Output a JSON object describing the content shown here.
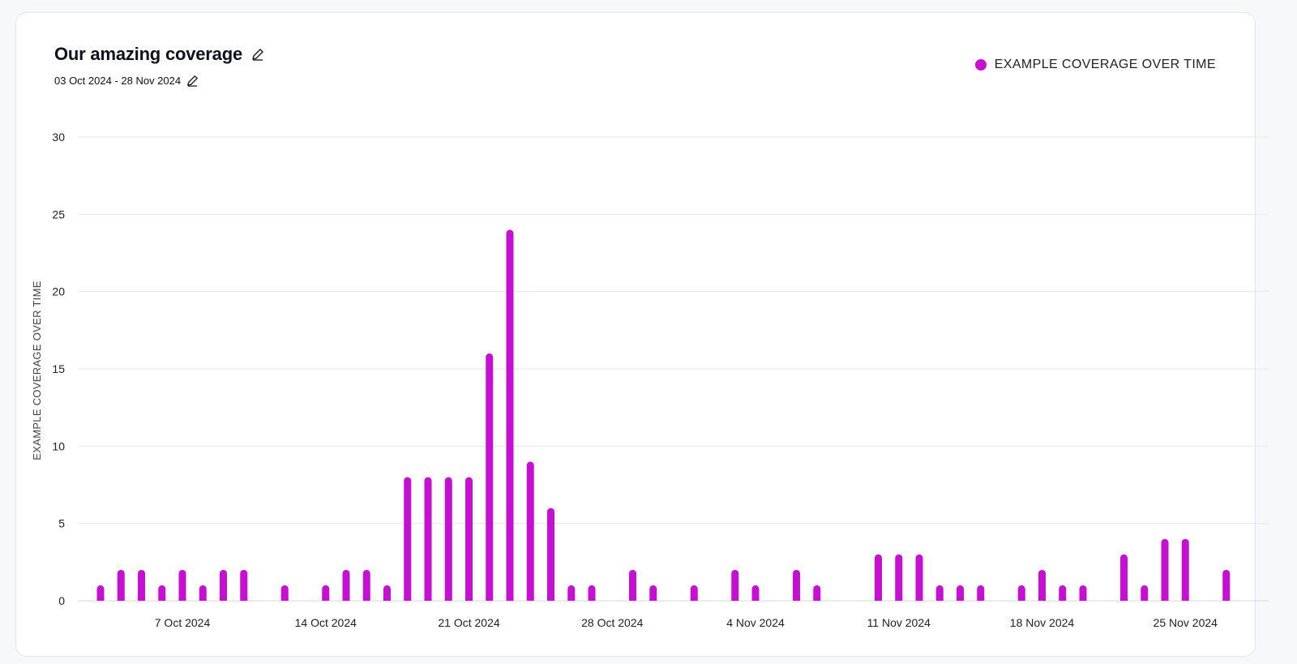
{
  "header": {
    "title": "Our amazing coverage",
    "subtitle": "03 Oct 2024 - 28 Nov 2024",
    "title_edit_icon": "pencil-icon",
    "subtitle_edit_icon": "pencil-icon"
  },
  "legend": {
    "label": "EXAMPLE COVERAGE OVER TIME",
    "color": "#c60fd3",
    "placement": "top-right"
  },
  "chart_data": {
    "type": "bar",
    "ylabel": "EXAMPLE COVERAGE OVER TIME",
    "xlabel": "",
    "ylim": [
      0,
      30
    ],
    "y_ticks": [
      "0",
      "5",
      "10",
      "15",
      "20",
      "25",
      "30"
    ],
    "x_tick_labels": [
      "7 Oct 2024",
      "14 Oct 2024",
      "21 Oct 2024",
      "28 Oct 2024",
      "4 Nov 2024",
      "11 Nov 2024",
      "18 Nov 2024",
      "25 Nov 2024"
    ],
    "grid": true,
    "color": "#c60fd3",
    "series": [
      {
        "name": "EXAMPLE COVERAGE OVER TIME",
        "x": [
          "2024-10-03",
          "2024-10-04",
          "2024-10-05",
          "2024-10-06",
          "2024-10-07",
          "2024-10-08",
          "2024-10-09",
          "2024-10-10",
          "2024-10-11",
          "2024-10-12",
          "2024-10-13",
          "2024-10-14",
          "2024-10-15",
          "2024-10-16",
          "2024-10-17",
          "2024-10-18",
          "2024-10-19",
          "2024-10-20",
          "2024-10-21",
          "2024-10-22",
          "2024-10-23",
          "2024-10-24",
          "2024-10-25",
          "2024-10-26",
          "2024-10-27",
          "2024-10-28",
          "2024-10-29",
          "2024-10-30",
          "2024-10-31",
          "2024-11-01",
          "2024-11-02",
          "2024-11-03",
          "2024-11-04",
          "2024-11-05",
          "2024-11-06",
          "2024-11-07",
          "2024-11-08",
          "2024-11-09",
          "2024-11-10",
          "2024-11-11",
          "2024-11-12",
          "2024-11-13",
          "2024-11-14",
          "2024-11-15",
          "2024-11-16",
          "2024-11-17",
          "2024-11-18",
          "2024-11-19",
          "2024-11-20",
          "2024-11-21",
          "2024-11-22",
          "2024-11-23",
          "2024-11-24",
          "2024-11-25",
          "2024-11-26",
          "2024-11-27",
          "2024-11-28"
        ],
        "values": [
          1,
          2,
          2,
          1,
          2,
          1,
          2,
          2,
          0,
          1,
          0,
          1,
          2,
          2,
          1,
          8,
          8,
          8,
          8,
          16,
          24,
          9,
          6,
          1,
          1,
          0,
          2,
          1,
          0,
          1,
          0,
          2,
          1,
          0,
          2,
          1,
          0,
          0,
          3,
          3,
          3,
          1,
          1,
          1,
          0,
          1,
          2,
          1,
          1,
          0,
          3,
          1,
          4,
          4,
          0,
          2,
          0
        ]
      }
    ]
  }
}
